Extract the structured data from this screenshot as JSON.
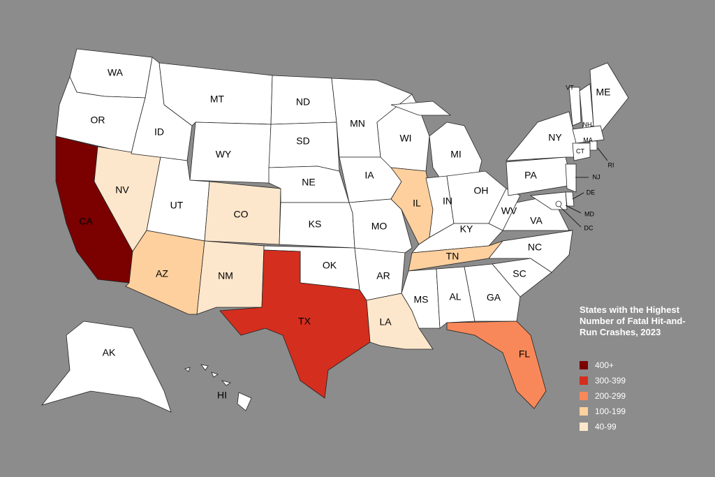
{
  "title": "States with the Highest Number of Fatal Hit-and-Run Crashes, 2023",
  "legend": [
    {
      "label": "400+",
      "color": "#7b0000"
    },
    {
      "label": "300-399",
      "color": "#d42e1e"
    },
    {
      "label": "200-299",
      "color": "#f8885a"
    },
    {
      "label": "100-199",
      "color": "#fdd09e"
    },
    {
      "label": "40-99",
      "color": "#fde7cc"
    }
  ],
  "states": [
    {
      "label": "WA",
      "color": "#ffffff"
    },
    {
      "label": "OR",
      "color": "#ffffff"
    },
    {
      "label": "CA",
      "color": "#7b0000"
    },
    {
      "label": "NV",
      "color": "#fde7cc"
    },
    {
      "label": "ID",
      "color": "#ffffff"
    },
    {
      "label": "MT",
      "color": "#ffffff"
    },
    {
      "label": "WY",
      "color": "#ffffff"
    },
    {
      "label": "UT",
      "color": "#ffffff"
    },
    {
      "label": "CO",
      "color": "#fde7cc"
    },
    {
      "label": "AZ",
      "color": "#fdd09e"
    },
    {
      "label": "NM",
      "color": "#fde7cc"
    },
    {
      "label": "ND",
      "color": "#ffffff"
    },
    {
      "label": "SD",
      "color": "#ffffff"
    },
    {
      "label": "NE",
      "color": "#ffffff"
    },
    {
      "label": "KS",
      "color": "#ffffff"
    },
    {
      "label": "OK",
      "color": "#ffffff"
    },
    {
      "label": "TX",
      "color": "#d42e1e"
    },
    {
      "label": "MN",
      "color": "#ffffff"
    },
    {
      "label": "IA",
      "color": "#ffffff"
    },
    {
      "label": "MO",
      "color": "#ffffff"
    },
    {
      "label": "AR",
      "color": "#ffffff"
    },
    {
      "label": "LA",
      "color": "#fde7cc"
    },
    {
      "label": "WI",
      "color": "#ffffff"
    },
    {
      "label": "IL",
      "color": "#fdd09e"
    },
    {
      "label": "MI",
      "color": "#ffffff"
    },
    {
      "label": "IN",
      "color": "#ffffff"
    },
    {
      "label": "OH",
      "color": "#ffffff"
    },
    {
      "label": "KY",
      "color": "#ffffff"
    },
    {
      "label": "TN",
      "color": "#fdd09e"
    },
    {
      "label": "MS",
      "color": "#ffffff"
    },
    {
      "label": "AL",
      "color": "#ffffff"
    },
    {
      "label": "GA",
      "color": "#ffffff"
    },
    {
      "label": "FL",
      "color": "#f8885a"
    },
    {
      "label": "SC",
      "color": "#ffffff"
    },
    {
      "label": "NC",
      "color": "#ffffff"
    },
    {
      "label": "VA",
      "color": "#ffffff"
    },
    {
      "label": "WV",
      "color": "#ffffff"
    },
    {
      "label": "PA",
      "color": "#ffffff"
    },
    {
      "label": "NY",
      "color": "#ffffff"
    },
    {
      "label": "VT",
      "color": "#ffffff"
    },
    {
      "label": "NH",
      "color": "#ffffff"
    },
    {
      "label": "ME",
      "color": "#ffffff"
    },
    {
      "label": "MA",
      "color": "#ffffff"
    },
    {
      "label": "CT",
      "color": "#ffffff"
    },
    {
      "label": "RI",
      "color": "#ffffff"
    },
    {
      "label": "NJ",
      "color": "#ffffff"
    },
    {
      "label": "DE",
      "color": "#ffffff"
    },
    {
      "label": "MD",
      "color": "#ffffff"
    },
    {
      "label": "DC",
      "color": "#ffffff"
    },
    {
      "label": "AK",
      "color": "#ffffff"
    },
    {
      "label": "HI",
      "color": "#ffffff"
    }
  ]
}
